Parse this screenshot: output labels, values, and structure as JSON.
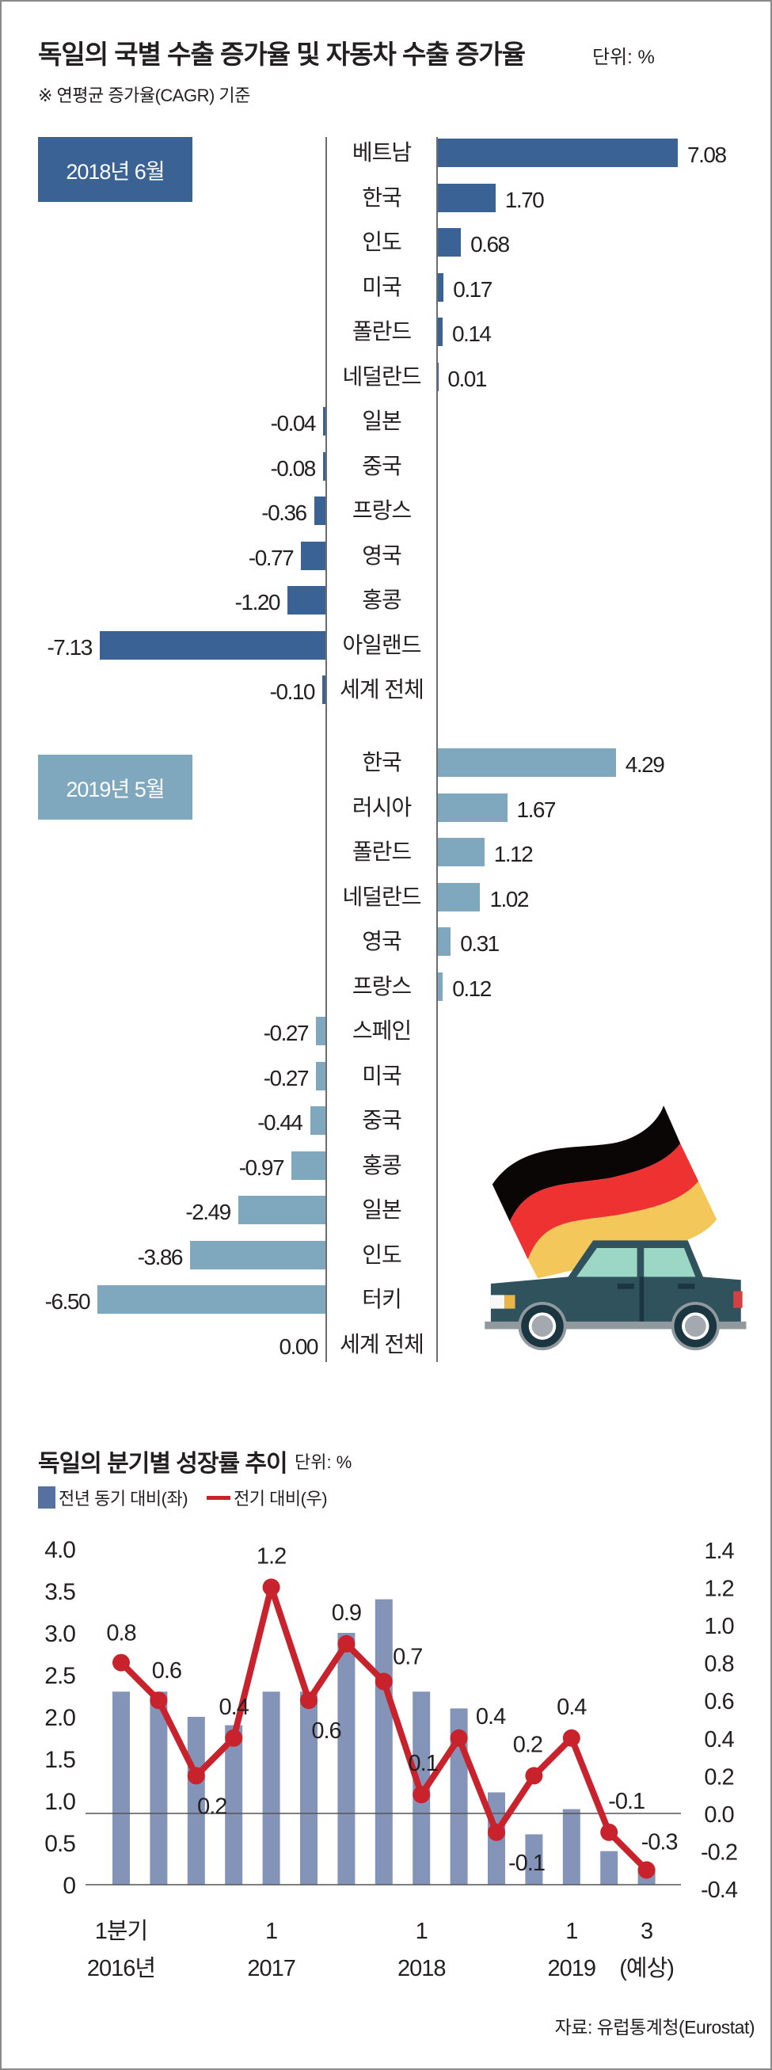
{
  "chart1": {
    "title": "독일의 국별 수출 증가율 및 자동차 수출 증가율",
    "unit": "단위: %",
    "note": "※ 연평균 증가율(CAGR) 기준",
    "colors": {
      "2018": "#3b6295",
      "2019": "#7fa8be"
    }
  },
  "chart2": {
    "title": "독일의 분기별 성장률 추이",
    "unit": "단위: %",
    "legend_bar": "전년 동기 대비(좌)",
    "legend_line": "전기 대비(우)",
    "source": "자료: 유럽통계청(Eurostat)",
    "colors": {
      "bar": "#8494b8",
      "line": "#c8232c",
      "legend_bar": "#56709f"
    }
  },
  "illustration": {
    "name": "german-flag-car"
  },
  "chart_data": [
    {
      "type": "bar",
      "orientation": "horizontal",
      "title": "독일의 국별 수출 증가율 및 자동차 수출 증가율",
      "subtitle": "※ 연평균 증가율(CAGR) 기준",
      "unit": "%",
      "groups": [
        {
          "name": "2018년 6월",
          "categories": [
            "베트남",
            "한국",
            "인도",
            "미국",
            "폴란드",
            "네덜란드",
            "일본",
            "중국",
            "프랑스",
            "영국",
            "홍콩",
            "아일랜드",
            "세계 전체"
          ],
          "values": [
            7.08,
            1.7,
            0.68,
            0.17,
            0.14,
            0.01,
            -0.04,
            -0.08,
            -0.36,
            -0.77,
            -1.2,
            -7.13,
            -0.1
          ],
          "labels": [
            "7.08",
            "1.70",
            "0.68",
            "0.17",
            "0.14",
            "0.01",
            "-0.04",
            "-0.08",
            "-0.36",
            "-0.77",
            "-1.20",
            "-7.13",
            "-0.10"
          ]
        },
        {
          "name": "2019년 5월",
          "categories": [
            "한국",
            "러시아",
            "폴란드",
            "네덜란드",
            "영국",
            "프랑스",
            "스페인",
            "미국",
            "중국",
            "홍콩",
            "일본",
            "인도",
            "터키",
            "세계 전체"
          ],
          "values": [
            4.29,
            1.67,
            1.12,
            1.02,
            0.31,
            0.12,
            -0.27,
            -0.27,
            -0.44,
            -0.97,
            -2.49,
            -3.86,
            -6.5,
            0.0
          ],
          "labels": [
            "4.29",
            "1.67",
            "1.12",
            "1.02",
            "0.31",
            "0.12",
            "-0.27",
            "-0.27",
            "-0.44",
            "-0.97",
            "-2.49",
            "-3.86",
            "-6.50",
            "0.00"
          ]
        }
      ]
    },
    {
      "type": "bar+line",
      "title": "독일의 분기별 성장률 추이",
      "unit": "%",
      "x_ticks": [
        {
          "index": 0,
          "line1": "1분기",
          "line2": "2016년"
        },
        {
          "index": 4,
          "line1": "1",
          "line2": "2017"
        },
        {
          "index": 8,
          "line1": "1",
          "line2": "2018"
        },
        {
          "index": 12,
          "line1": "1",
          "line2": "2019"
        },
        {
          "index": 14,
          "line1": "3",
          "line2": "(예상)"
        }
      ],
      "x": [
        "2016 Q1",
        "2016 Q2",
        "2016 Q3",
        "2016 Q4",
        "2017 Q1",
        "2017 Q2",
        "2017 Q3",
        "2017 Q4",
        "2018 Q1",
        "2018 Q2",
        "2018 Q3",
        "2018 Q4",
        "2019 Q1",
        "2019 Q2",
        "2019 Q3 (예상)"
      ],
      "series": [
        {
          "name": "전년 동기 대비(좌)",
          "type": "bar",
          "axis": "left",
          "values": [
            2.3,
            2.3,
            2.0,
            1.9,
            2.3,
            2.3,
            3.0,
            3.4,
            2.3,
            2.1,
            1.1,
            0.6,
            0.9,
            0.4,
            0.2
          ]
        },
        {
          "name": "전기 대비(우)",
          "type": "line",
          "axis": "right",
          "values": [
            0.8,
            0.6,
            0.2,
            0.4,
            1.2,
            0.6,
            0.9,
            0.7,
            0.1,
            0.4,
            -0.1,
            0.2,
            0.4,
            -0.1,
            -0.3
          ],
          "labels": [
            "0.8",
            "0.6",
            "0.2",
            "0.4",
            "1.2",
            "0.6",
            "0.9",
            "0.7",
            "0.1",
            "0.4",
            "-0.1",
            "0.2",
            "0.4",
            "-0.1",
            "-0.3"
          ]
        }
      ],
      "y_left": {
        "ylim": [
          0,
          4.0
        ],
        "ticks": [
          "4.0",
          "3.5",
          "3.0",
          "2.5",
          "2.0",
          "1.5",
          "1.0",
          "0.5",
          "0"
        ],
        "tick_values": [
          4.0,
          3.5,
          3.0,
          2.5,
          2.0,
          1.5,
          1.0,
          0.5,
          0
        ]
      },
      "y_right": {
        "ylim": [
          -0.4,
          1.4
        ],
        "ticks": [
          "1.4",
          "1.2",
          "1.0",
          "0.8",
          "0.6",
          "0.4",
          "0.2",
          "0.0",
          "-0.2",
          "-0.4"
        ],
        "tick_values": [
          1.4,
          1.2,
          1.0,
          0.8,
          0.6,
          0.4,
          0.2,
          0.0,
          -0.2,
          -0.4
        ]
      },
      "grid": false,
      "legend": "top-left"
    }
  ]
}
